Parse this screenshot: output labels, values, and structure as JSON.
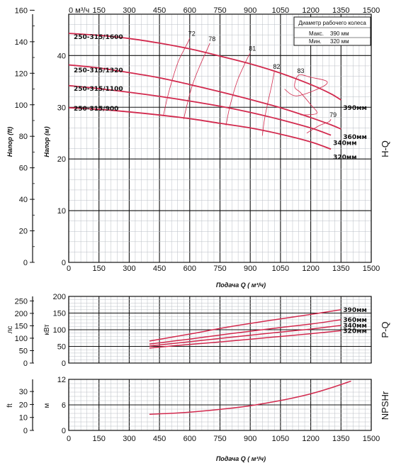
{
  "colors": {
    "curve": "#d22a4e",
    "eff": "#d22a4e",
    "grid_minor": "#aeb4bb",
    "grid_major": "#111111"
  },
  "top_axis": {
    "unit": "0 м³/ч",
    "ticks": [
      "150",
      "300",
      "450",
      "600",
      "750",
      "900",
      "1050",
      "1200",
      "1350",
      "1500"
    ]
  },
  "hq": {
    "ylabel_ft": "Напор (ft)",
    "ylabel_m": "Напор (м)",
    "ft_ticks": [
      "0",
      "20",
      "40",
      "60",
      "80",
      "100",
      "120",
      "140",
      "160"
    ],
    "m_ticks": [
      "20",
      "30",
      "40"
    ],
    "m_ticks_low": [
      "0",
      "10"
    ],
    "side_label": "H-Q"
  },
  "legend": {
    "title": "Диаметр рабочего колеса",
    "max_label": "Макс.",
    "max_value": "390 мм",
    "min_label": "Мин.",
    "min_value": "320 мм"
  },
  "models": [
    "250-315/1600",
    "250-315/1320",
    "250-315/1100",
    "250-315/900"
  ],
  "pq": {
    "ylabel_hp": "лс",
    "ylabel_kw": "кВт",
    "hp_ticks": [
      "0",
      "50",
      "100",
      "150",
      "200",
      "250"
    ],
    "kw_ticks": [
      "0",
      "50",
      "100",
      "150",
      "200"
    ],
    "side_label": "P-Q"
  },
  "npsh": {
    "ylabel_ft": "ft",
    "ylabel_m": "м",
    "ft_ticks": [
      "0",
      "10",
      "20",
      "30"
    ],
    "m_ticks": [
      "0",
      "6",
      "12"
    ],
    "side_label": "NPSHr"
  },
  "x_ticks": [
    "0",
    "150",
    "300",
    "450",
    "600",
    "750",
    "900",
    "1050",
    "1200",
    "1350",
    "1500"
  ],
  "xlabel": "Подача Q ( м³/ч)",
  "chart_data": [
    {
      "type": "line",
      "title": "H-Q",
      "xlabel": "Подача Q ( м³/ч)",
      "ylabel": "Напор (м)",
      "xlim": [
        0,
        1500
      ],
      "ylim": [
        0,
        48
      ],
      "x": [
        0,
        150,
        300,
        450,
        600,
        750,
        900,
        1050,
        1200,
        1350
      ],
      "series": [
        {
          "name": "390мм",
          "x": [
            0,
            150,
            300,
            450,
            600,
            750,
            900,
            1050,
            1200,
            1300,
            1350
          ],
          "values": [
            44.3,
            43.9,
            43.3,
            42.4,
            41.3,
            39.9,
            38.4,
            36.6,
            34.4,
            32.6,
            31.4
          ]
        },
        {
          "name": "360мм",
          "x": [
            0,
            150,
            300,
            450,
            600,
            750,
            900,
            1050,
            1200,
            1300,
            1350
          ],
          "values": [
            38.2,
            37.6,
            36.7,
            35.7,
            34.4,
            33.0,
            31.5,
            29.9,
            28.0,
            26.6,
            25.8
          ]
        },
        {
          "name": "340мм",
          "x": [
            0,
            150,
            300,
            450,
            600,
            750,
            900,
            1050,
            1200,
            1300
          ],
          "values": [
            34.2,
            33.6,
            32.9,
            32.1,
            31.2,
            30.2,
            29.0,
            27.6,
            26.0,
            24.6
          ]
        },
        {
          "name": "320мм",
          "x": [
            0,
            150,
            300,
            450,
            600,
            750,
            900,
            1050,
            1200,
            1300
          ],
          "values": [
            29.9,
            29.6,
            29.1,
            28.5,
            27.8,
            26.9,
            26.0,
            24.8,
            23.3,
            21.9
          ]
        }
      ],
      "efficiency": [
        {
          "label": "72",
          "x": [
            470,
            490,
            515,
            545,
            590,
            600
          ],
          "values": [
            28.5,
            32.0,
            35.5,
            39.0,
            42.5,
            43.4
          ]
        },
        {
          "label": "78",
          "x": [
            570,
            590,
            615,
            650,
            690,
            700
          ],
          "values": [
            27.7,
            31.0,
            34.5,
            38.0,
            41.5,
            42.4
          ]
        },
        {
          "name": "81",
          "label": "81",
          "x": [
            780,
            795,
            815,
            840,
            880,
            900
          ],
          "values": [
            26.5,
            29.5,
            32.5,
            35.5,
            39.0,
            40.5
          ]
        },
        {
          "label": "82",
          "x": [
            960,
            970,
            985,
            1005,
            1020
          ],
          "values": [
            24.5,
            27.5,
            30.5,
            34.0,
            37.0
          ]
        },
        {
          "label": "83",
          "x": [
            1070,
            1130,
            1250,
            1280,
            1200,
            1140,
            1120,
            1150,
            1200,
            1230,
            1150
          ],
          "values": [
            33.5,
            32.2,
            33.8,
            35.0,
            35.8,
            36.2,
            34.0,
            32.8,
            30.5,
            28.8,
            28.5
          ]
        },
        {
          "label": "79",
          "x": [
            1180,
            1240,
            1290,
            1300
          ],
          "values": [
            25.0,
            26.4,
            27.2,
            27.7
          ]
        }
      ],
      "models": [
        "250-315/1600",
        "250-315/1320",
        "250-315/1100",
        "250-315/900"
      ]
    },
    {
      "type": "line",
      "title": "P-Q",
      "xlabel": "",
      "ylabel": "кВт",
      "xlim": [
        0,
        1500
      ],
      "ylim": [
        0,
        200
      ],
      "series": [
        {
          "name": "390мм",
          "x": [
            400,
            600,
            800,
            1000,
            1200,
            1350
          ],
          "values": [
            66,
            87,
            109,
            128,
            146,
            160
          ]
        },
        {
          "name": "360мм",
          "x": [
            400,
            600,
            800,
            1000,
            1200,
            1350
          ],
          "values": [
            57,
            72,
            88,
            103,
            117,
            130
          ]
        },
        {
          "name": "340мм",
          "x": [
            400,
            600,
            800,
            1000,
            1200,
            1350
          ],
          "values": [
            51,
            64,
            77,
            90,
            102,
            113
          ]
        },
        {
          "name": "320мм",
          "x": [
            400,
            600,
            800,
            1000,
            1200,
            1350
          ],
          "values": [
            45,
            56,
            66,
            77,
            88,
            97
          ]
        }
      ]
    },
    {
      "type": "line",
      "title": "NPSHr",
      "xlabel": "Подача Q ( м³/ч)",
      "ylabel": "м",
      "xlim": [
        0,
        1500
      ],
      "ylim": [
        0,
        12
      ],
      "series": [
        {
          "name": "NPSHr",
          "x": [
            400,
            500,
            600,
            700,
            800,
            900,
            1000,
            1100,
            1200,
            1300,
            1400
          ],
          "values": [
            3.8,
            4.0,
            4.3,
            4.7,
            5.2,
            5.8,
            6.6,
            7.5,
            8.6,
            10.0,
            11.6
          ]
        }
      ]
    }
  ]
}
